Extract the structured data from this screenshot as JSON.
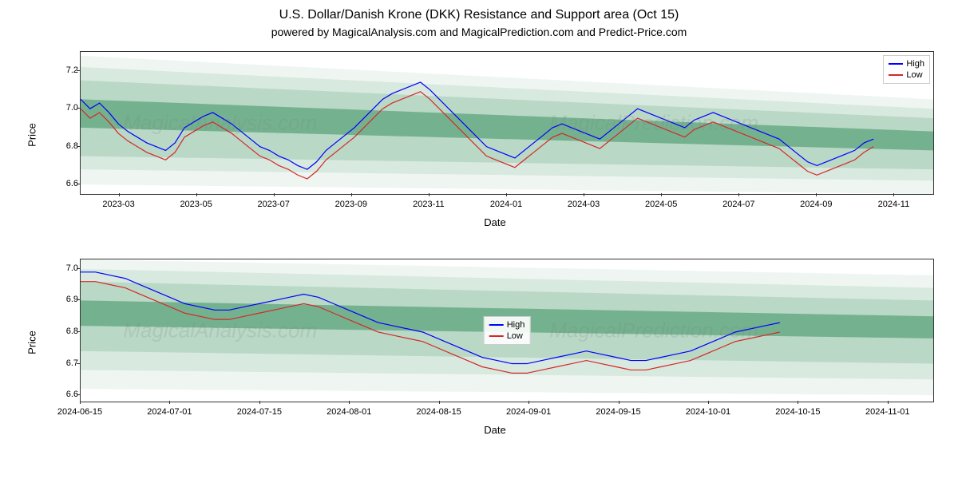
{
  "title": "U.S. Dollar/Danish Krone (DKK) Resistance and Support area (Oct 15)",
  "subtitle": "powered by MagicalAnalysis.com and MagicalPrediction.com and Predict-Price.com",
  "watermarks": [
    "MagicalAnalysis.com",
    "MagicalPrediction.com"
  ],
  "legend": {
    "high": {
      "label": "High",
      "color": "#0000ff"
    },
    "low": {
      "label": "Low",
      "color": "#d62728"
    }
  },
  "bands": {
    "colors": [
      "#2e8b57"
    ],
    "opacities": [
      0.08,
      0.12,
      0.18,
      0.25,
      0.32
    ]
  },
  "axis_color": "#333333",
  "grid_color": "#e0e0e0",
  "background": "#ffffff",
  "line_width": 1.2,
  "chart_top": {
    "type": "line",
    "ylabel": "Price",
    "xlabel": "Date",
    "ylim": [
      6.55,
      7.3
    ],
    "yticks": [
      6.6,
      6.8,
      7.0,
      7.2
    ],
    "xdomain": [
      0,
      22
    ],
    "xticks": [
      {
        "pos": 1,
        "label": "2023-03"
      },
      {
        "pos": 3,
        "label": "2023-05"
      },
      {
        "pos": 5,
        "label": "2023-07"
      },
      {
        "pos": 7,
        "label": "2023-09"
      },
      {
        "pos": 9,
        "label": "2023-11"
      },
      {
        "pos": 11,
        "label": "2024-01"
      },
      {
        "pos": 13,
        "label": "2024-03"
      },
      {
        "pos": 15,
        "label": "2024-05"
      },
      {
        "pos": 17,
        "label": "2024-07"
      },
      {
        "pos": 19,
        "label": "2024-09"
      },
      {
        "pos": 21,
        "label": "2024-11"
      }
    ],
    "bands_x": [
      0,
      22
    ],
    "bands_y_start": [
      6.6,
      6.68,
      6.75,
      6.9,
      7.05,
      7.15,
      7.22,
      7.28
    ],
    "bands_y_end": [
      6.55,
      6.62,
      6.68,
      6.78,
      6.88,
      6.95,
      7.0,
      7.05
    ],
    "high": [
      7.05,
      7.0,
      7.03,
      6.98,
      6.92,
      6.88,
      6.85,
      6.82,
      6.8,
      6.78,
      6.82,
      6.9,
      6.93,
      6.96,
      6.98,
      6.95,
      6.92,
      6.88,
      6.84,
      6.8,
      6.78,
      6.75,
      6.73,
      6.7,
      6.68,
      6.72,
      6.78,
      6.82,
      6.86,
      6.9,
      6.95,
      7.0,
      7.05,
      7.08,
      7.1,
      7.12,
      7.14,
      7.1,
      7.05,
      7.0,
      6.95,
      6.9,
      6.85,
      6.8,
      6.78,
      6.76,
      6.74,
      6.78,
      6.82,
      6.86,
      6.9,
      6.92,
      6.9,
      6.88,
      6.86,
      6.84,
      6.88,
      6.92,
      6.96,
      7.0,
      6.98,
      6.96,
      6.94,
      6.92,
      6.9,
      6.94,
      6.96,
      6.98,
      6.96,
      6.94,
      6.92,
      6.9,
      6.88,
      6.86,
      6.84,
      6.8,
      6.76,
      6.72,
      6.7,
      6.72,
      6.74,
      6.76,
      6.78,
      6.82,
      6.84
    ],
    "low": [
      7.0,
      6.95,
      6.98,
      6.93,
      6.87,
      6.83,
      6.8,
      6.77,
      6.75,
      6.73,
      6.77,
      6.85,
      6.88,
      6.91,
      6.93,
      6.9,
      6.87,
      6.83,
      6.79,
      6.75,
      6.73,
      6.7,
      6.68,
      6.65,
      6.63,
      6.67,
      6.73,
      6.77,
      6.81,
      6.85,
      6.9,
      6.95,
      7.0,
      7.03,
      7.05,
      7.07,
      7.09,
      7.05,
      7.0,
      6.95,
      6.9,
      6.85,
      6.8,
      6.75,
      6.73,
      6.71,
      6.69,
      6.73,
      6.77,
      6.81,
      6.85,
      6.87,
      6.85,
      6.83,
      6.81,
      6.79,
      6.83,
      6.87,
      6.91,
      6.95,
      6.93,
      6.91,
      6.89,
      6.87,
      6.85,
      6.89,
      6.91,
      6.93,
      6.91,
      6.89,
      6.87,
      6.85,
      6.83,
      6.81,
      6.79,
      6.75,
      6.71,
      6.67,
      6.65,
      6.67,
      6.69,
      6.71,
      6.73,
      6.77,
      6.8
    ]
  },
  "chart_bottom": {
    "type": "line",
    "ylabel": "Price",
    "xlabel": "Date",
    "ylim": [
      6.58,
      7.03
    ],
    "yticks": [
      6.6,
      6.7,
      6.8,
      6.9,
      7.0
    ],
    "xdomain": [
      0,
      9.5
    ],
    "xticks": [
      {
        "pos": 0,
        "label": "2024-06-15"
      },
      {
        "pos": 1,
        "label": "2024-07-01"
      },
      {
        "pos": 2,
        "label": "2024-07-15"
      },
      {
        "pos": 3,
        "label": "2024-08-01"
      },
      {
        "pos": 4,
        "label": "2024-08-15"
      },
      {
        "pos": 5,
        "label": "2024-09-01"
      },
      {
        "pos": 6,
        "label": "2024-09-15"
      },
      {
        "pos": 7,
        "label": "2024-10-01"
      },
      {
        "pos": 8,
        "label": "2024-10-15"
      },
      {
        "pos": 9,
        "label": "2024-11-01"
      }
    ],
    "bands_x": [
      0,
      9.5
    ],
    "bands_y_start": [
      6.62,
      6.68,
      6.74,
      6.82,
      6.9,
      6.96,
      7.0,
      7.03
    ],
    "bands_y_end": [
      6.6,
      6.65,
      6.7,
      6.78,
      6.85,
      6.9,
      6.94,
      6.98
    ],
    "high": [
      6.99,
      6.99,
      6.98,
      6.97,
      6.95,
      6.93,
      6.91,
      6.89,
      6.88,
      6.87,
      6.87,
      6.88,
      6.89,
      6.9,
      6.91,
      6.92,
      6.91,
      6.89,
      6.87,
      6.85,
      6.83,
      6.82,
      6.81,
      6.8,
      6.78,
      6.76,
      6.74,
      6.72,
      6.71,
      6.7,
      6.7,
      6.71,
      6.72,
      6.73,
      6.74,
      6.73,
      6.72,
      6.71,
      6.71,
      6.72,
      6.73,
      6.74,
      6.76,
      6.78,
      6.8,
      6.81,
      6.82,
      6.83
    ],
    "low": [
      6.96,
      6.96,
      6.95,
      6.94,
      6.92,
      6.9,
      6.88,
      6.86,
      6.85,
      6.84,
      6.84,
      6.85,
      6.86,
      6.87,
      6.88,
      6.89,
      6.88,
      6.86,
      6.84,
      6.82,
      6.8,
      6.79,
      6.78,
      6.77,
      6.75,
      6.73,
      6.71,
      6.69,
      6.68,
      6.67,
      6.67,
      6.68,
      6.69,
      6.7,
      6.71,
      6.7,
      6.69,
      6.68,
      6.68,
      6.69,
      6.7,
      6.71,
      6.73,
      6.75,
      6.77,
      6.78,
      6.79,
      6.8
    ]
  }
}
